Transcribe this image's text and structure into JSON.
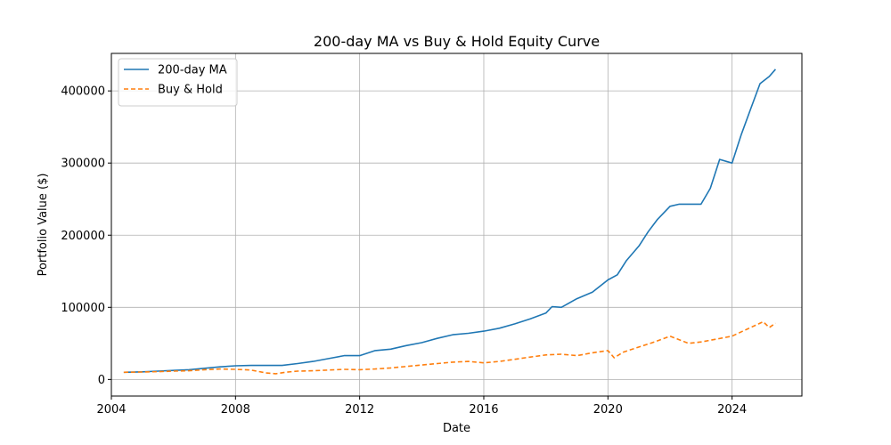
{
  "chart_data": {
    "type": "line",
    "title": "200-day MA vs Buy & Hold Equity Curve",
    "xlabel": "Date",
    "ylabel": "Portfolio Value ($)",
    "xlim": [
      2004.0,
      2026.25
    ],
    "ylim": [
      -23000,
      452000
    ],
    "x_ticks": [
      2004,
      2008,
      2012,
      2016,
      2020,
      2024
    ],
    "y_ticks": [
      0,
      100000,
      200000,
      300000,
      400000
    ],
    "grid": true,
    "legend_position": "top-left",
    "series": [
      {
        "name": "200-day MA",
        "color": "#1f77b4",
        "line_style": "solid",
        "x": [
          2004.4,
          2005.0,
          2005.5,
          2006.0,
          2006.5,
          2007.0,
          2007.5,
          2008.0,
          2008.5,
          2009.0,
          2009.5,
          2010.0,
          2010.5,
          2011.0,
          2011.5,
          2012.0,
          2012.5,
          2013.0,
          2013.5,
          2014.0,
          2014.5,
          2015.0,
          2015.5,
          2016.0,
          2016.5,
          2017.0,
          2017.5,
          2018.0,
          2018.2,
          2018.5,
          2019.0,
          2019.5,
          2020.0,
          2020.3,
          2020.6,
          2021.0,
          2021.3,
          2021.6,
          2022.0,
          2022.3,
          2022.6,
          2023.0,
          2023.3,
          2023.6,
          2024.0,
          2024.3,
          2024.6,
          2024.9,
          2025.2,
          2025.4
        ],
        "y": [
          10000,
          10500,
          11500,
          12500,
          13500,
          15500,
          17500,
          19000,
          19500,
          19500,
          19500,
          22000,
          25000,
          29000,
          33000,
          33000,
          40000,
          42000,
          47000,
          51000,
          57000,
          62000,
          64000,
          67000,
          71000,
          77000,
          84000,
          92000,
          101000,
          100000,
          112000,
          121000,
          138000,
          145000,
          165000,
          185000,
          205000,
          222000,
          240000,
          243000,
          243000,
          243000,
          265000,
          305000,
          300000,
          340000,
          375000,
          410000,
          420000,
          430000
        ]
      },
      {
        "name": "Buy & Hold",
        "color": "#ff7f0e",
        "line_style": "dashed",
        "x": [
          2004.4,
          2005.0,
          2005.5,
          2006.0,
          2006.5,
          2007.0,
          2007.5,
          2008.0,
          2008.5,
          2009.0,
          2009.3,
          2009.6,
          2010.0,
          2010.5,
          2011.0,
          2011.5,
          2012.0,
          2012.5,
          2013.0,
          2013.5,
          2014.0,
          2014.5,
          2015.0,
          2015.5,
          2016.0,
          2016.5,
          2017.0,
          2017.5,
          2018.0,
          2018.5,
          2019.0,
          2019.5,
          2020.0,
          2020.2,
          2020.5,
          2021.0,
          2021.5,
          2022.0,
          2022.3,
          2022.6,
          2023.0,
          2023.5,
          2024.0,
          2024.5,
          2025.0,
          2025.2,
          2025.4
        ],
        "y": [
          10000,
          10300,
          10800,
          11500,
          12000,
          13500,
          14500,
          14000,
          13000,
          9000,
          8000,
          10000,
          11500,
          12000,
          13000,
          14000,
          13500,
          14500,
          16000,
          18000,
          20000,
          22000,
          24000,
          25000,
          23000,
          25000,
          28000,
          31000,
          34000,
          35000,
          33000,
          37000,
          40000,
          30000,
          38000,
          45000,
          52000,
          60000,
          55000,
          50000,
          52000,
          56000,
          60000,
          70000,
          80000,
          72000,
          78000
        ]
      }
    ]
  }
}
